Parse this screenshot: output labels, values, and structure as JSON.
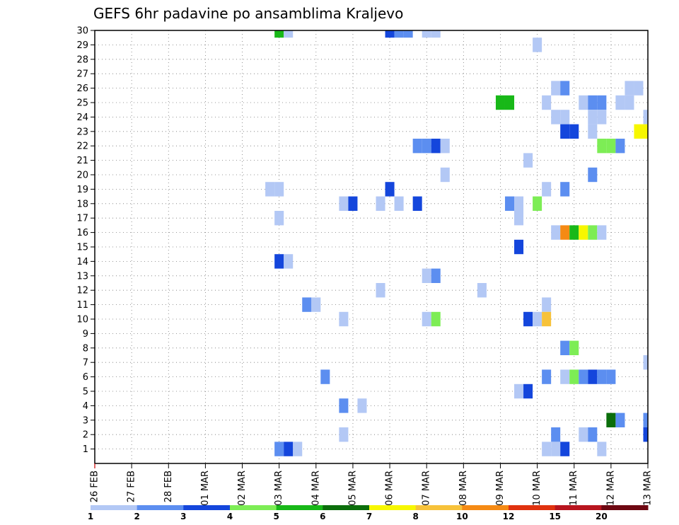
{
  "chart_data": {
    "type": "heatmap",
    "title": "GEFS 6hr padavine po ansamblima Kraljevo",
    "xlabel": "",
    "ylabel": "",
    "x_ticks": [
      "26 FEB",
      "27 FEB",
      "28 FEB",
      "01 MAR",
      "02 MAR",
      "03 MAR",
      "04 MAR",
      "05 MAR",
      "06 MAR",
      "07 MAR",
      "08 MAR",
      "09 MAR",
      "10 MAR",
      "11 MAR",
      "12 MAR",
      "13 MAR"
    ],
    "x_range_steps": [
      0,
      60
    ],
    "steps_per_day": 4,
    "y_ticks": [
      "1",
      "2",
      "3",
      "4",
      "5",
      "6",
      "7",
      "8",
      "9",
      "10",
      "11",
      "12",
      "13",
      "14",
      "15",
      "16",
      "17",
      "18",
      "19",
      "20",
      "21",
      "22",
      "23",
      "24",
      "25",
      "26",
      "27",
      "28",
      "29",
      "30"
    ],
    "y_range_members": [
      0,
      30
    ],
    "grid": true,
    "legend": {
      "position": "bottom",
      "levels": [
        "1",
        "2",
        "3",
        "4",
        "5",
        "6",
        "7",
        "8",
        "10",
        "12",
        "15",
        "20"
      ],
      "colors": [
        "#b3c8f5",
        "#5c8ef0",
        "#1446dc",
        "#7ded55",
        "#18b818",
        "#0b6e0b",
        "#f7f700",
        "#f7c23a",
        "#f58a14",
        "#e0320f",
        "#b8151f",
        "#6e0812"
      ]
    },
    "cells": [
      {
        "t": 20,
        "m": 30,
        "v": 5
      },
      {
        "t": 21,
        "m": 30,
        "v": 1
      },
      {
        "t": 32,
        "m": 30,
        "v": 3
      },
      {
        "t": 33,
        "m": 30,
        "v": 2
      },
      {
        "t": 34,
        "m": 30,
        "v": 2
      },
      {
        "t": 36,
        "m": 30,
        "v": 1
      },
      {
        "t": 37,
        "m": 30,
        "v": 1
      },
      {
        "t": 48,
        "m": 29,
        "v": 1
      },
      {
        "t": 50,
        "m": 26,
        "v": 1
      },
      {
        "t": 51,
        "m": 26,
        "v": 2
      },
      {
        "t": 58,
        "m": 26,
        "v": 1
      },
      {
        "t": 59,
        "m": 26,
        "v": 1
      },
      {
        "t": 44,
        "m": 25,
        "v": 5
      },
      {
        "t": 45,
        "m": 25,
        "v": 5
      },
      {
        "t": 49,
        "m": 25,
        "v": 1
      },
      {
        "t": 53,
        "m": 25,
        "v": 1
      },
      {
        "t": 54,
        "m": 25,
        "v": 2
      },
      {
        "t": 55,
        "m": 25,
        "v": 2
      },
      {
        "t": 57,
        "m": 25,
        "v": 1
      },
      {
        "t": 58,
        "m": 25,
        "v": 1
      },
      {
        "t": 50,
        "m": 24,
        "v": 1
      },
      {
        "t": 51,
        "m": 24,
        "v": 1
      },
      {
        "t": 54,
        "m": 24,
        "v": 1
      },
      {
        "t": 55,
        "m": 24,
        "v": 1
      },
      {
        "t": 60,
        "m": 24,
        "v": 1
      },
      {
        "t": 51,
        "m": 23,
        "v": 3
      },
      {
        "t": 52,
        "m": 23,
        "v": 3
      },
      {
        "t": 54,
        "m": 23,
        "v": 1
      },
      {
        "t": 59,
        "m": 23,
        "v": 7
      },
      {
        "t": 60,
        "m": 23,
        "v": 7
      },
      {
        "t": 35,
        "m": 22,
        "v": 2
      },
      {
        "t": 36,
        "m": 22,
        "v": 2
      },
      {
        "t": 37,
        "m": 22,
        "v": 3
      },
      {
        "t": 38,
        "m": 22,
        "v": 1
      },
      {
        "t": 55,
        "m": 22,
        "v": 4
      },
      {
        "t": 56,
        "m": 22,
        "v": 4
      },
      {
        "t": 57,
        "m": 22,
        "v": 2
      },
      {
        "t": 47,
        "m": 21,
        "v": 1
      },
      {
        "t": 38,
        "m": 20,
        "v": 1
      },
      {
        "t": 54,
        "m": 20,
        "v": 2
      },
      {
        "t": 19,
        "m": 19,
        "v": 1
      },
      {
        "t": 20,
        "m": 19,
        "v": 1
      },
      {
        "t": 32,
        "m": 19,
        "v": 3
      },
      {
        "t": 49,
        "m": 19,
        "v": 1
      },
      {
        "t": 51,
        "m": 19,
        "v": 2
      },
      {
        "t": 27,
        "m": 18,
        "v": 1
      },
      {
        "t": 28,
        "m": 18,
        "v": 3
      },
      {
        "t": 31,
        "m": 18,
        "v": 1
      },
      {
        "t": 33,
        "m": 18,
        "v": 1
      },
      {
        "t": 35,
        "m": 18,
        "v": 3
      },
      {
        "t": 45,
        "m": 18,
        "v": 2
      },
      {
        "t": 46,
        "m": 18,
        "v": 1
      },
      {
        "t": 48,
        "m": 18,
        "v": 4
      },
      {
        "t": 20,
        "m": 17,
        "v": 1
      },
      {
        "t": 46,
        "m": 17,
        "v": 1
      },
      {
        "t": 50,
        "m": 16,
        "v": 1
      },
      {
        "t": 51,
        "m": 16,
        "v": 10
      },
      {
        "t": 52,
        "m": 16,
        "v": 5
      },
      {
        "t": 53,
        "m": 16,
        "v": 7
      },
      {
        "t": 54,
        "m": 16,
        "v": 4
      },
      {
        "t": 55,
        "m": 16,
        "v": 1
      },
      {
        "t": 46,
        "m": 15,
        "v": 3
      },
      {
        "t": 20,
        "m": 14,
        "v": 3
      },
      {
        "t": 21,
        "m": 14,
        "v": 1
      },
      {
        "t": 36,
        "m": 13,
        "v": 1
      },
      {
        "t": 37,
        "m": 13,
        "v": 2
      },
      {
        "t": 31,
        "m": 12,
        "v": 1
      },
      {
        "t": 42,
        "m": 12,
        "v": 1
      },
      {
        "t": 23,
        "m": 11,
        "v": 2
      },
      {
        "t": 24,
        "m": 11,
        "v": 1
      },
      {
        "t": 49,
        "m": 11,
        "v": 1
      },
      {
        "t": 27,
        "m": 10,
        "v": 1
      },
      {
        "t": 36,
        "m": 10,
        "v": 1
      },
      {
        "t": 37,
        "m": 10,
        "v": 4
      },
      {
        "t": 47,
        "m": 10,
        "v": 3
      },
      {
        "t": 48,
        "m": 10,
        "v": 1
      },
      {
        "t": 49,
        "m": 10,
        "v": 8
      },
      {
        "t": 51,
        "m": 8,
        "v": 2
      },
      {
        "t": 52,
        "m": 8,
        "v": 4
      },
      {
        "t": 60,
        "m": 7,
        "v": 1
      },
      {
        "t": 25,
        "m": 6,
        "v": 2
      },
      {
        "t": 49,
        "m": 6,
        "v": 2
      },
      {
        "t": 51,
        "m": 6,
        "v": 1
      },
      {
        "t": 52,
        "m": 6,
        "v": 4
      },
      {
        "t": 53,
        "m": 6,
        "v": 2
      },
      {
        "t": 54,
        "m": 6,
        "v": 3
      },
      {
        "t": 55,
        "m": 6,
        "v": 2
      },
      {
        "t": 56,
        "m": 6,
        "v": 2
      },
      {
        "t": 46,
        "m": 5,
        "v": 1
      },
      {
        "t": 47,
        "m": 5,
        "v": 3
      },
      {
        "t": 27,
        "m": 4,
        "v": 2
      },
      {
        "t": 29,
        "m": 4,
        "v": 1
      },
      {
        "t": 56,
        "m": 3,
        "v": 6
      },
      {
        "t": 57,
        "m": 3,
        "v": 2
      },
      {
        "t": 60,
        "m": 3,
        "v": 2
      },
      {
        "t": 27,
        "m": 2,
        "v": 1
      },
      {
        "t": 50,
        "m": 2,
        "v": 2
      },
      {
        "t": 53,
        "m": 2,
        "v": 1
      },
      {
        "t": 54,
        "m": 2,
        "v": 2
      },
      {
        "t": 60,
        "m": 2,
        "v": 3
      },
      {
        "t": 20,
        "m": 1,
        "v": 2
      },
      {
        "t": 21,
        "m": 1,
        "v": 3
      },
      {
        "t": 22,
        "m": 1,
        "v": 1
      },
      {
        "t": 49,
        "m": 1,
        "v": 1
      },
      {
        "t": 50,
        "m": 1,
        "v": 1
      },
      {
        "t": 51,
        "m": 1,
        "v": 3
      },
      {
        "t": 55,
        "m": 1,
        "v": 1
      }
    ]
  }
}
